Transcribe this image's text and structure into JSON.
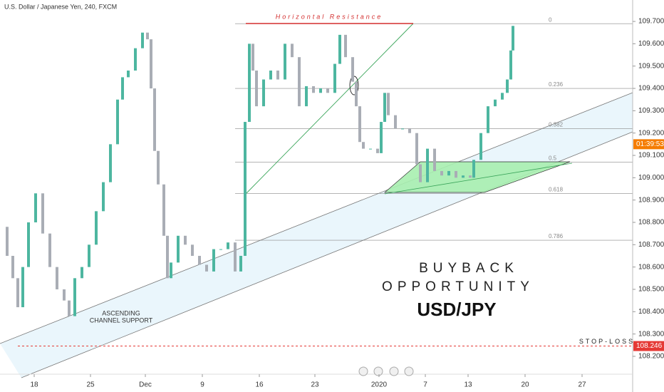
{
  "chart_data": {
    "type": "candlestick",
    "title": "U.S. Dollar / Japanese Yen, 240, FXCM",
    "x": [
      3,
      10,
      18,
      25,
      32,
      40,
      50,
      60,
      70,
      80,
      90,
      97,
      105,
      115,
      125,
      135,
      145,
      155,
      165,
      172,
      180,
      190,
      200,
      207,
      212,
      217,
      222,
      230,
      235,
      240,
      250,
      260,
      270,
      280,
      290,
      300,
      310,
      320,
      330,
      338,
      344,
      350,
      355,
      360,
      370,
      380,
      390,
      400,
      410,
      420,
      430,
      440,
      450,
      460,
      470,
      477,
      485,
      495,
      500,
      505,
      510,
      520,
      530,
      535,
      540,
      545,
      555,
      565,
      575,
      585,
      590,
      600,
      610,
      620,
      630,
      640,
      650,
      660,
      665,
      675,
      685,
      695,
      705,
      712,
      717,
      720
    ],
    "close": [
      108.78,
      108.65,
      108.55,
      108.42,
      108.6,
      108.8,
      108.93,
      108.75,
      108.6,
      108.5,
      108.45,
      108.38,
      108.55,
      108.6,
      108.7,
      108.85,
      108.98,
      109.15,
      109.35,
      109.45,
      109.48,
      109.58,
      109.65,
      109.62,
      109.4,
      109.12,
      108.97,
      108.74,
      108.55,
      108.62,
      108.74,
      108.7,
      108.65,
      108.61,
      108.58,
      108.68,
      108.68,
      108.71,
      108.58,
      108.65,
      109.25,
      109.6,
      109.48,
      109.32,
      109.44,
      109.48,
      109.44,
      109.6,
      109.54,
      109.32,
      109.41,
      109.38,
      109.4,
      109.38,
      109.51,
      109.64,
      109.54,
      109.43,
      109.32,
      109.16,
      109.13,
      109.13,
      109.11,
      109.25,
      109.38,
      109.28,
      109.22,
      109.22,
      109.2,
      109.06,
      108.98,
      109.13,
      109.03,
      109.01,
      109.03,
      109.0,
      109.01,
      109.0,
      109.08,
      109.2,
      109.32,
      109.35,
      109.38,
      109.44,
      109.57,
      109.68
    ],
    "up_color": "#4db6a0",
    "down_color": "#a9adb5",
    "xlim": [
      0,
      888
    ],
    "ylim": [
      108.12,
      109.796
    ],
    "yticks": [
      {
        "value": 108.2,
        "label": "108.200"
      },
      {
        "value": 108.3,
        "label": "108.300"
      },
      {
        "value": 108.4,
        "label": "108.400"
      },
      {
        "value": 108.5,
        "label": "108.500"
      },
      {
        "value": 108.6,
        "label": "108.600"
      },
      {
        "value": 108.7,
        "label": "108.700"
      },
      {
        "value": 108.8,
        "label": "108.800"
      },
      {
        "value": 108.9,
        "label": "108.900"
      },
      {
        "value": 109.0,
        "label": "109.000"
      },
      {
        "value": 109.1,
        "label": "109.100"
      },
      {
        "value": 109.2,
        "label": "109.200"
      },
      {
        "value": 109.3,
        "label": "109.300"
      },
      {
        "value": 109.4,
        "label": "109.400"
      },
      {
        "value": 109.5,
        "label": "109.500"
      },
      {
        "value": 109.6,
        "label": "109.600"
      },
      {
        "value": 109.7,
        "label": "109.700"
      }
    ],
    "xticks": [
      {
        "value": 48,
        "label": "18"
      },
      {
        "value": 127,
        "label": "25"
      },
      {
        "value": 204,
        "label": "Dec"
      },
      {
        "value": 284,
        "label": "9"
      },
      {
        "value": 364,
        "label": "16"
      },
      {
        "value": 442,
        "label": "23"
      },
      {
        "value": 532,
        "label": "2020"
      },
      {
        "value": 597,
        "label": "7"
      },
      {
        "value": 657,
        "label": "13"
      },
      {
        "value": 737,
        "label": "20"
      },
      {
        "value": 817,
        "label": "27"
      }
    ],
    "fib_levels": [
      {
        "ratio": 0,
        "price": 109.69
      },
      {
        "ratio": 0.236,
        "price": 109.4
      },
      {
        "ratio": 0.382,
        "price": 109.22
      },
      {
        "ratio": 0.5,
        "price": 109.07
      },
      {
        "ratio": 0.618,
        "price": 108.93
      },
      {
        "ratio": 0.786,
        "price": 108.72
      }
    ],
    "stop_loss": {
      "label": "STOP-LOSS",
      "price": 108.246
    },
    "price_tag": {
      "label": "01:39:53",
      "price": 109.15
    },
    "annotations": {
      "resistance": "Horizontal Resistance",
      "channel": [
        "ASCENDING",
        "CHANNEL SUPPORT"
      ],
      "headline": [
        "BUYBACK",
        "OPPORTUNITY"
      ],
      "pair": "USD/JPY"
    }
  }
}
